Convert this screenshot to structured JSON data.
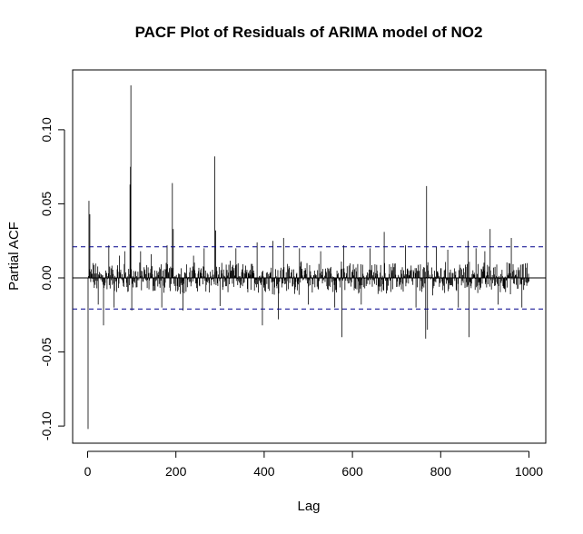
{
  "chart_data": {
    "type": "pacf",
    "title": "PACF Plot of Residuals of ARIMA model of NO2",
    "xlabel": "Lag",
    "ylabel": "Partial ACF",
    "xlim": [
      1,
      1000
    ],
    "ylim": [
      -0.11,
      0.14
    ],
    "x_ticks": [
      0,
      200,
      400,
      600,
      800,
      1000
    ],
    "x_tick_labels": [
      "0",
      "200",
      "400",
      "600",
      "800",
      "1000"
    ],
    "y_ticks": [
      -0.1,
      -0.05,
      0.0,
      0.05,
      0.1
    ],
    "y_tick_labels": [
      "-0.10",
      "-0.05",
      "0.00",
      "0.05",
      "0.10"
    ],
    "confidence_bounds": [
      0.021,
      -0.021
    ],
    "zero_line": 0.0,
    "bar_color": "#000000",
    "bound_color": "#00008B",
    "background": "#FFFFFF",
    "grid": false,
    "legend": "none",
    "lag_range": [
      1,
      1000
    ],
    "baseline_noise_amplitude": 0.012,
    "notable_lags": [
      {
        "lag": 1,
        "value": -0.102
      },
      {
        "lag": 3,
        "value": 0.052
      },
      {
        "lag": 5,
        "value": 0.043
      },
      {
        "lag": 12,
        "value": 0.01
      },
      {
        "lag": 24,
        "value": -0.018
      },
      {
        "lag": 36,
        "value": -0.032
      },
      {
        "lag": 48,
        "value": 0.022
      },
      {
        "lag": 60,
        "value": -0.02
      },
      {
        "lag": 72,
        "value": 0.015
      },
      {
        "lag": 84,
        "value": 0.018
      },
      {
        "lag": 96,
        "value": 0.063
      },
      {
        "lag": 97,
        "value": 0.075
      },
      {
        "lag": 98,
        "value": 0.13
      },
      {
        "lag": 100,
        "value": -0.022
      },
      {
        "lag": 120,
        "value": 0.018
      },
      {
        "lag": 144,
        "value": 0.016
      },
      {
        "lag": 168,
        "value": -0.02
      },
      {
        "lag": 180,
        "value": 0.022
      },
      {
        "lag": 192,
        "value": 0.064
      },
      {
        "lag": 194,
        "value": 0.033
      },
      {
        "lag": 216,
        "value": -0.022
      },
      {
        "lag": 240,
        "value": 0.015
      },
      {
        "lag": 264,
        "value": 0.02
      },
      {
        "lag": 288,
        "value": 0.082
      },
      {
        "lag": 290,
        "value": 0.032
      },
      {
        "lag": 300,
        "value": -0.019
      },
      {
        "lag": 336,
        "value": 0.02
      },
      {
        "lag": 384,
        "value": 0.024
      },
      {
        "lag": 396,
        "value": -0.032
      },
      {
        "lag": 420,
        "value": 0.025
      },
      {
        "lag": 432,
        "value": -0.028
      },
      {
        "lag": 444,
        "value": 0.027
      },
      {
        "lag": 480,
        "value": 0.02
      },
      {
        "lag": 500,
        "value": -0.018
      },
      {
        "lag": 528,
        "value": 0.018
      },
      {
        "lag": 560,
        "value": -0.02
      },
      {
        "lag": 576,
        "value": -0.04
      },
      {
        "lag": 580,
        "value": 0.022
      },
      {
        "lag": 620,
        "value": -0.018
      },
      {
        "lag": 640,
        "value": 0.02
      },
      {
        "lag": 672,
        "value": 0.031
      },
      {
        "lag": 720,
        "value": 0.022
      },
      {
        "lag": 744,
        "value": -0.02
      },
      {
        "lag": 766,
        "value": -0.041
      },
      {
        "lag": 768,
        "value": 0.062
      },
      {
        "lag": 770,
        "value": -0.035
      },
      {
        "lag": 790,
        "value": 0.021
      },
      {
        "lag": 816,
        "value": 0.019
      },
      {
        "lag": 840,
        "value": -0.02
      },
      {
        "lag": 862,
        "value": 0.025
      },
      {
        "lag": 864,
        "value": -0.04
      },
      {
        "lag": 880,
        "value": 0.02
      },
      {
        "lag": 900,
        "value": 0.018
      },
      {
        "lag": 912,
        "value": 0.033
      },
      {
        "lag": 930,
        "value": -0.018
      },
      {
        "lag": 960,
        "value": 0.027
      },
      {
        "lag": 984,
        "value": -0.02
      },
      {
        "lag": 996,
        "value": 0.01
      }
    ]
  }
}
